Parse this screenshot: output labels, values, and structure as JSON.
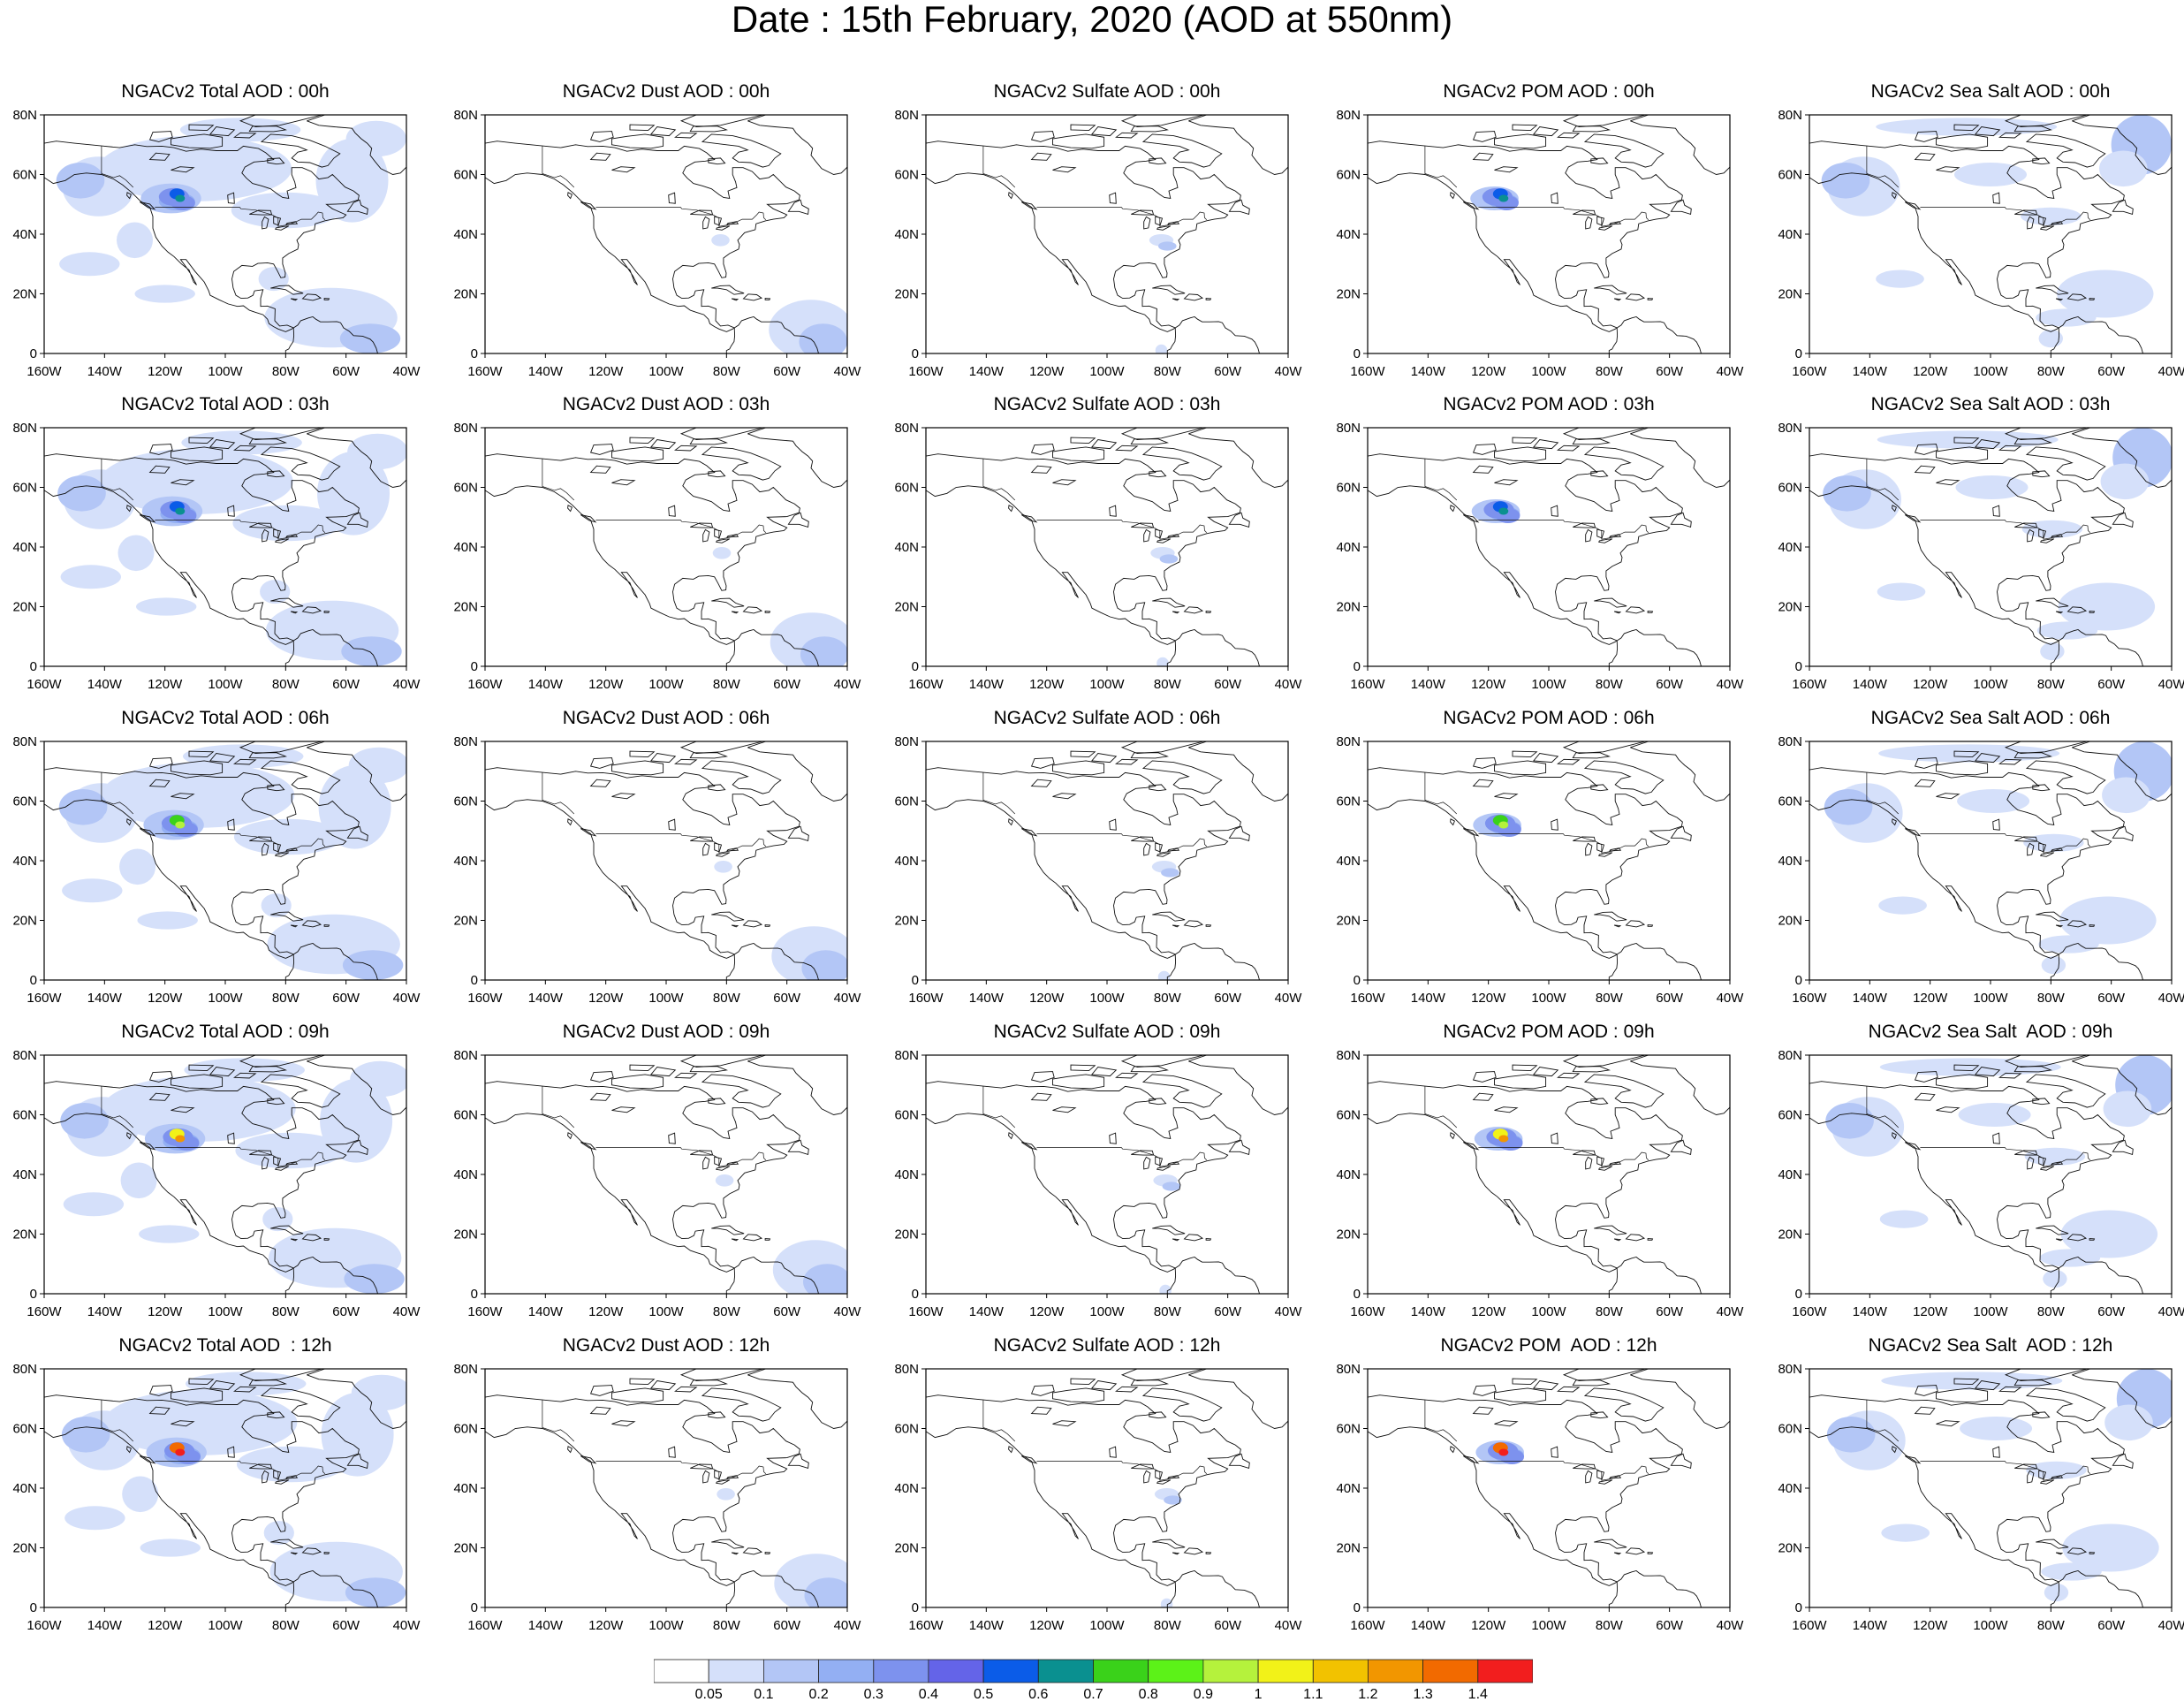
{
  "title": "Date : 15th February, 2020 (AOD at 550nm)",
  "axes": {
    "lat_ticks": [
      "80N",
      "60N",
      "40N",
      "20N",
      "0"
    ],
    "lat_values": [
      80,
      60,
      40,
      20,
      0
    ],
    "lon_ticks": [
      "160W",
      "140W",
      "120W",
      "100W",
      "80W",
      "60W",
      "40W"
    ],
    "lon_values": [
      -160,
      -140,
      -120,
      -100,
      -80,
      -60,
      -40
    ],
    "lat_range": [
      0,
      80
    ],
    "lon_range": [
      -160,
      -40
    ]
  },
  "colorbar": {
    "labels": [
      "0.05",
      "0.1",
      "0.2",
      "0.3",
      "0.4",
      "0.5",
      "0.6",
      "0.7",
      "0.8",
      "0.9",
      "1",
      "1.1",
      "1.2",
      "1.3",
      "1.4"
    ],
    "colors": [
      "#ffffff",
      "#d5e0fa",
      "#b3c6f6",
      "#93aff3",
      "#7d92ee",
      "#6464e8",
      "#0b5ce8",
      "#0a9090",
      "#3ad21a",
      "#5cf218",
      "#b5f23c",
      "#f2f218",
      "#f2c200",
      "#f29600",
      "#f26a00",
      "#f21e1e"
    ]
  },
  "panels": [
    {
      "title": "NGACv2 Total AOD : 00h",
      "species": "total"
    },
    {
      "title": "NGACv2 Dust AOD : 00h",
      "species": "dust"
    },
    {
      "title": "NGACv2 Sulfate AOD : 00h",
      "species": "sulfate"
    },
    {
      "title": "NGACv2 POM AOD : 00h",
      "species": "pom"
    },
    {
      "title": "NGACv2 Sea Salt AOD : 00h",
      "species": "seasalt"
    },
    {
      "title": "NGACv2 Total AOD : 03h",
      "species": "total"
    },
    {
      "title": "NGACv2 Dust AOD : 03h",
      "species": "dust"
    },
    {
      "title": "NGACv2 Sulfate AOD : 03h",
      "species": "sulfate"
    },
    {
      "title": "NGACv2 POM AOD : 03h",
      "species": "pom"
    },
    {
      "title": "NGACv2 Sea Salt AOD : 03h",
      "species": "seasalt"
    },
    {
      "title": "NGACv2 Total AOD : 06h",
      "species": "total"
    },
    {
      "title": "NGACv2 Dust AOD : 06h",
      "species": "dust"
    },
    {
      "title": "NGACv2 Sulfate AOD : 06h",
      "species": "sulfate"
    },
    {
      "title": "NGACv2 POM AOD : 06h",
      "species": "pom"
    },
    {
      "title": "NGACv2 Sea Salt AOD : 06h",
      "species": "seasalt"
    },
    {
      "title": "NGACv2 Total AOD : 09h",
      "species": "total"
    },
    {
      "title": "NGACv2 Dust AOD : 09h",
      "species": "dust"
    },
    {
      "title": "NGACv2 Sulfate AOD : 09h",
      "species": "sulfate"
    },
    {
      "title": "NGACv2 POM AOD : 09h",
      "species": "pom"
    },
    {
      "title": "NGACv2 Sea Salt  AOD : 09h",
      "species": "seasalt"
    },
    {
      "title": "NGACv2 Total AOD  : 12h",
      "species": "total"
    },
    {
      "title": "NGACv2 Dust AOD : 12h",
      "species": "dust"
    },
    {
      "title": "NGACv2 Sulfate AOD : 12h",
      "species": "sulfate"
    },
    {
      "title": "NGACv2 POM  AOD : 12h",
      "species": "pom"
    },
    {
      "title": "NGACv2 Sea Salt  AOD : 12h",
      "species": "seasalt"
    }
  ]
}
